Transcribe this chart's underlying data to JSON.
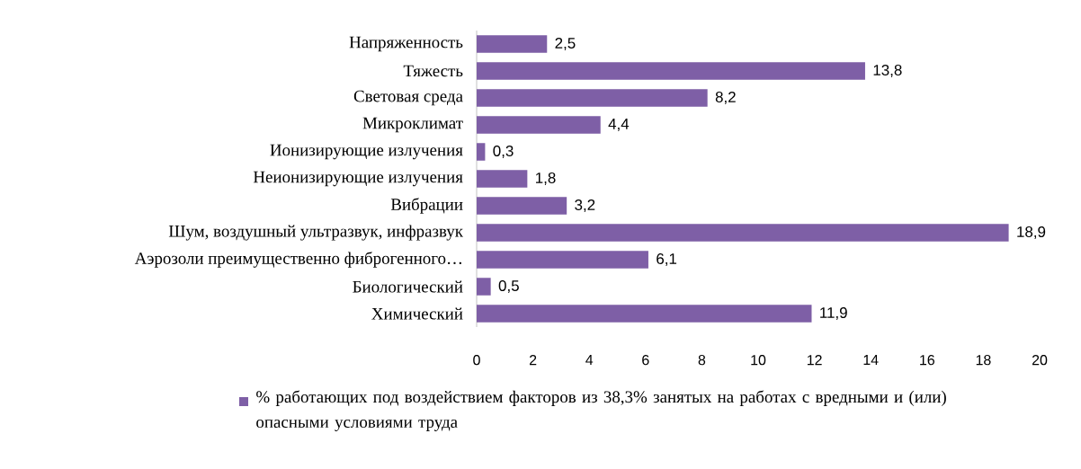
{
  "chart_data": {
    "type": "bar",
    "orientation": "horizontal",
    "categories": [
      "Напряженность",
      "Тяжесть",
      "Световая среда",
      "Микроклимат",
      "Ионизирующие излучения",
      "Неионизирующие излучения",
      "Вибрации",
      "Шум, воздушный ультразвук, инфразвук",
      "Аэрозоли преимущественно фиброгенного…",
      "Биологический",
      "Химический"
    ],
    "series": [
      {
        "name": "% работающих  под воздействием факторов из 38,3% занятых  на работах  с вредными и (или)  опасными условиями труда",
        "color": "#7e5fa6",
        "values": [
          2.5,
          13.8,
          8.2,
          4.4,
          0.3,
          1.8,
          3.2,
          18.9,
          6.1,
          0.5,
          11.9
        ],
        "value_labels": [
          "2,5",
          "13,8",
          "8,2",
          "4,4",
          "0,3",
          "1,8",
          "3,2",
          "18,9",
          "6,1",
          "0,5",
          "11,9"
        ]
      }
    ],
    "xlim": [
      0,
      20
    ],
    "xticks": [
      0,
      2,
      4,
      6,
      8,
      10,
      12,
      14,
      16,
      18,
      20
    ],
    "legend": "bottom"
  }
}
